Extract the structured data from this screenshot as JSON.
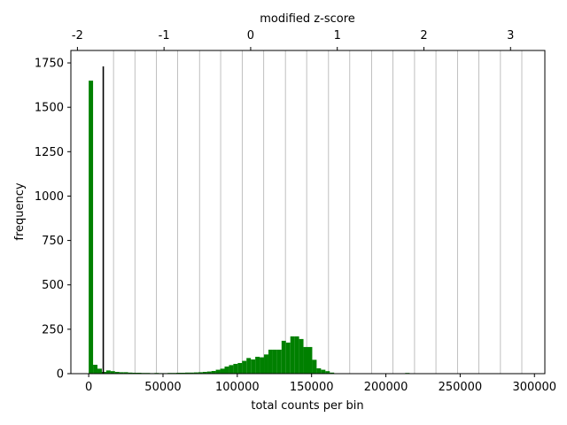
{
  "chart_data": {
    "type": "bar",
    "xlabel": "total counts per bin",
    "ylabel": "frequency",
    "top_xlabel": "modified z-score",
    "xlim": [
      -12000,
      307000
    ],
    "ylim": [
      0,
      1820
    ],
    "x_ticks": [
      0,
      50000,
      100000,
      150000,
      200000,
      250000,
      300000
    ],
    "x_tick_labels": [
      "0",
      "50000",
      "100000",
      "150000",
      "200000",
      "250000",
      "300000"
    ],
    "y_ticks": [
      0,
      250,
      500,
      750,
      1000,
      1250,
      1500,
      1750
    ],
    "y_tick_labels": [
      "0",
      "250",
      "500",
      "750",
      "1000",
      "1250",
      "1500",
      "1750"
    ],
    "top_ticks": [
      -2,
      -1,
      0,
      1,
      2,
      3
    ],
    "top_tick_labels": [
      "-2",
      "-1",
      "0",
      "1",
      "2",
      "3"
    ],
    "z_score_mapping": {
      "z0_count": 109000,
      "counts_per_unit_z": 58300
    },
    "grid_lines_x": [
      16700,
      31100,
      45600,
      59900,
      74600,
      88800,
      103300,
      117800,
      132400,
      146700,
      161400,
      175700,
      190400,
      204700,
      219300,
      233700,
      248200,
      262600,
      277100,
      291500
    ],
    "threshold_line": {
      "x": 9800,
      "y_top": 1730,
      "color": "#000000"
    },
    "bar_color": "#008000",
    "bin_width": 2950,
    "bins": [
      {
        "x": 0,
        "y": 1650
      },
      {
        "x": 2950,
        "y": 50
      },
      {
        "x": 5900,
        "y": 28
      },
      {
        "x": 8850,
        "y": 10
      },
      {
        "x": 11800,
        "y": 18
      },
      {
        "x": 14750,
        "y": 14
      },
      {
        "x": 17700,
        "y": 10
      },
      {
        "x": 20650,
        "y": 8
      },
      {
        "x": 23600,
        "y": 8
      },
      {
        "x": 26550,
        "y": 6
      },
      {
        "x": 29500,
        "y": 5
      },
      {
        "x": 32450,
        "y": 5
      },
      {
        "x": 35400,
        "y": 4
      },
      {
        "x": 38350,
        "y": 4
      },
      {
        "x": 41300,
        "y": 3
      },
      {
        "x": 44250,
        "y": 4
      },
      {
        "x": 47200,
        "y": 3
      },
      {
        "x": 50150,
        "y": 3
      },
      {
        "x": 53100,
        "y": 4
      },
      {
        "x": 56050,
        "y": 4
      },
      {
        "x": 59000,
        "y": 5
      },
      {
        "x": 61950,
        "y": 5
      },
      {
        "x": 64900,
        "y": 6
      },
      {
        "x": 67850,
        "y": 6
      },
      {
        "x": 70800,
        "y": 7
      },
      {
        "x": 73750,
        "y": 8
      },
      {
        "x": 76700,
        "y": 10
      },
      {
        "x": 79650,
        "y": 12
      },
      {
        "x": 82600,
        "y": 15
      },
      {
        "x": 85550,
        "y": 22
      },
      {
        "x": 88500,
        "y": 28
      },
      {
        "x": 91450,
        "y": 40
      },
      {
        "x": 94400,
        "y": 48
      },
      {
        "x": 97350,
        "y": 55
      },
      {
        "x": 100300,
        "y": 60
      },
      {
        "x": 103250,
        "y": 72
      },
      {
        "x": 106200,
        "y": 88
      },
      {
        "x": 109150,
        "y": 80
      },
      {
        "x": 112100,
        "y": 95
      },
      {
        "x": 115050,
        "y": 92
      },
      {
        "x": 118000,
        "y": 108
      },
      {
        "x": 120950,
        "y": 135
      },
      {
        "x": 123900,
        "y": 135
      },
      {
        "x": 126850,
        "y": 135
      },
      {
        "x": 129800,
        "y": 185
      },
      {
        "x": 132750,
        "y": 175
      },
      {
        "x": 135700,
        "y": 210
      },
      {
        "x": 138650,
        "y": 210
      },
      {
        "x": 141600,
        "y": 195
      },
      {
        "x": 144550,
        "y": 150
      },
      {
        "x": 147500,
        "y": 150
      },
      {
        "x": 150450,
        "y": 78
      },
      {
        "x": 153400,
        "y": 30
      },
      {
        "x": 156350,
        "y": 22
      },
      {
        "x": 159300,
        "y": 14
      },
      {
        "x": 162250,
        "y": 6
      },
      {
        "x": 165200,
        "y": 2
      },
      {
        "x": 213000,
        "y": 4
      }
    ]
  }
}
